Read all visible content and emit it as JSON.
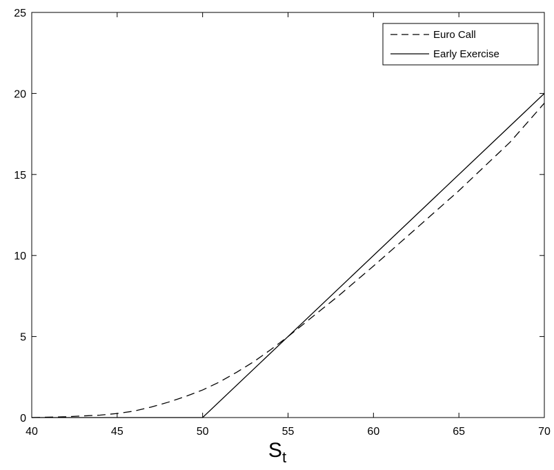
{
  "chart_data": {
    "type": "line",
    "title": "",
    "xlabel": "S",
    "xlabel_subscript": "t",
    "ylabel": "",
    "xlim": [
      40,
      70
    ],
    "ylim": [
      0,
      25
    ],
    "x_ticks": [
      40,
      45,
      50,
      55,
      60,
      65,
      70
    ],
    "y_ticks": [
      0,
      5,
      10,
      15,
      20,
      25
    ],
    "grid": false,
    "legend_position": "top-right",
    "series": [
      {
        "name": "Euro Call",
        "style": "dashed",
        "color": "#000000",
        "x": [
          40,
          42,
          44,
          45,
          46,
          47,
          48,
          49,
          50,
          51,
          52,
          53,
          54,
          55,
          56,
          57,
          58,
          60,
          62,
          65,
          68,
          70
        ],
        "y": [
          0.0,
          0.05,
          0.15,
          0.25,
          0.4,
          0.65,
          0.95,
          1.3,
          1.7,
          2.2,
          2.8,
          3.45,
          4.2,
          5.0,
          5.85,
          6.7,
          7.55,
          9.35,
          11.2,
          14.0,
          17.0,
          19.4
        ]
      },
      {
        "name": "Early Exercise",
        "style": "solid",
        "color": "#000000",
        "x": [
          40,
          50,
          70
        ],
        "y": [
          0,
          0,
          20
        ]
      }
    ]
  }
}
